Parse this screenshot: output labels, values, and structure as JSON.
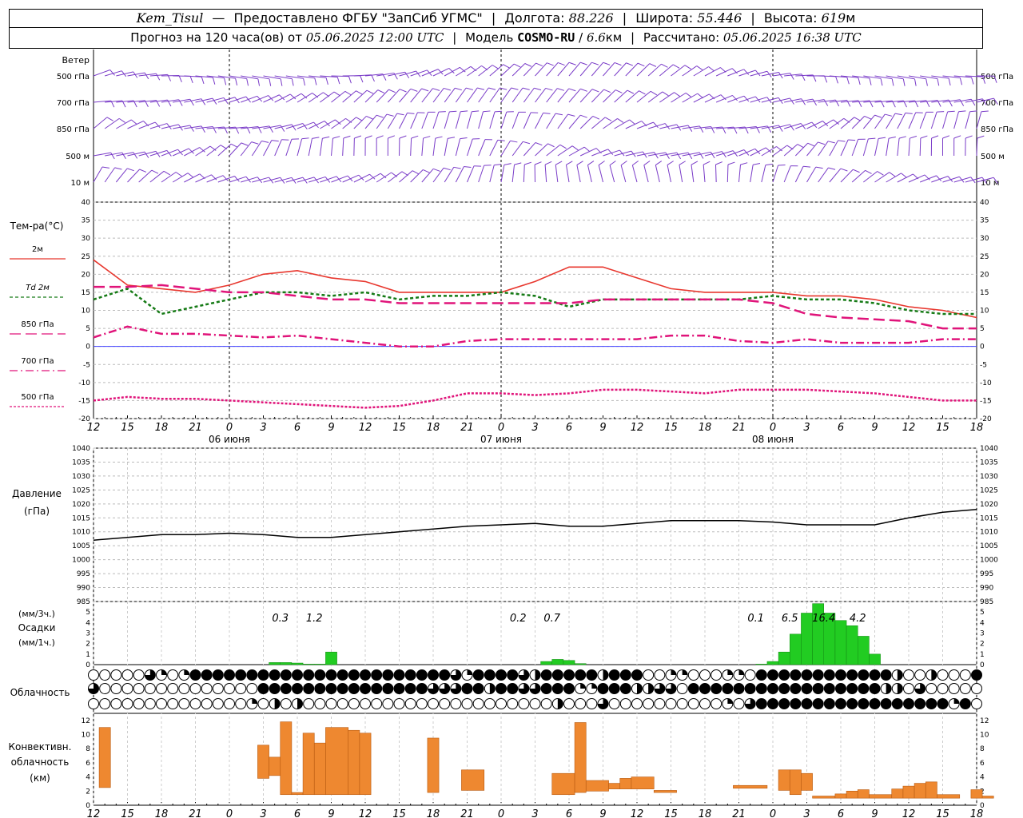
{
  "header": {
    "station": "Kem_Tisul",
    "provider": "Предоставлено ФГБУ \"ЗапСиб УГМС\"",
    "lon_label": "Долгота:",
    "lon": "88.226",
    "lat_label": "Широта:",
    "lat": "55.446",
    "alt_label": "Высота:",
    "alt": "619",
    "alt_unit": "м",
    "forecast_prefix": "Прогноз на 120 часа(ов) от",
    "forecast_start": "05.06.2025 12:00 UTC",
    "model_label": "Модель",
    "model": "COSMO-RU",
    "model_res": "6.6",
    "model_res_unit": "км",
    "computed_label": "Рассчитано:",
    "computed": "05.06.2025 16:38 UTC"
  },
  "wind": {
    "title": "Ветер",
    "levels": [
      "500 гПа",
      "700 гПа",
      "850 гПа",
      "500 м",
      "10  м"
    ],
    "color": "#7a3cc8"
  },
  "time_axis": {
    "hour_labels": [
      "12",
      "15",
      "18",
      "21",
      "0",
      "3",
      "6",
      "9",
      "12",
      "15",
      "18",
      "21",
      "0",
      "3",
      "6",
      "9",
      "12",
      "15",
      "18",
      "21",
      "0",
      "3",
      "6",
      "9",
      "12",
      "15",
      "18"
    ],
    "date_labels": [
      "06 июня",
      "07 июня",
      "08 июня"
    ]
  },
  "chart_data": [
    {
      "type": "line",
      "title": "Тем-ра(°C)",
      "ylim": [
        -20,
        40
      ],
      "yticks": [
        "40",
        "35",
        "30",
        "25",
        "20",
        "15",
        "10",
        "5",
        "0",
        "-5",
        "-10",
        "-15",
        "-20"
      ],
      "x_hours": [
        0,
        3,
        6,
        9,
        12,
        15,
        18,
        21,
        24,
        27,
        30,
        33,
        36,
        39,
        42,
        45,
        48,
        51,
        54,
        57,
        60,
        63,
        66,
        69,
        72,
        75,
        78
      ],
      "series": [
        {
          "name": "2м",
          "color": "#e8372e",
          "values": [
            24,
            17,
            16,
            15,
            17,
            20,
            21,
            19,
            18,
            15,
            15,
            15,
            15,
            18,
            22,
            22,
            19,
            16,
            15,
            15,
            15,
            14,
            14,
            13,
            11,
            10,
            8
          ]
        },
        {
          "name": "Td  2м",
          "color": "#157a15",
          "values": [
            13,
            16,
            9,
            11,
            13,
            15,
            15,
            14,
            15,
            13,
            14,
            14,
            15,
            14,
            11,
            13,
            13,
            13,
            13,
            13,
            14,
            13,
            13,
            12,
            10,
            9,
            9
          ]
        },
        {
          "name": "850 гПа",
          "color": "#e0147a",
          "values": [
            16.5,
            16.5,
            17,
            16,
            15,
            15,
            14,
            13,
            13,
            12,
            12,
            12,
            12,
            12,
            12,
            13,
            13,
            13,
            13,
            13,
            12,
            9,
            8,
            7.5,
            7,
            5,
            5
          ]
        },
        {
          "name": "700 гПа",
          "color": "#e0147a",
          "values": [
            2.5,
            5.5,
            3.5,
            3.5,
            3,
            2.5,
            3,
            2,
            1,
            0,
            0,
            1.5,
            2,
            2,
            2,
            2,
            2,
            3,
            3,
            1.5,
            1,
            2,
            1,
            1,
            1,
            2,
            2
          ]
        },
        {
          "name": "500 гПа",
          "color": "#e0147a",
          "values": [
            -15,
            -14,
            -14.5,
            -14.5,
            -15,
            -15.5,
            -16,
            -16.5,
            -17,
            -16.5,
            -15,
            -13,
            -13,
            -13.5,
            -13,
            -12,
            -12,
            -12.5,
            -13,
            -12,
            -12,
            -12,
            -12.5,
            -13,
            -14,
            -15,
            -15
          ]
        }
      ]
    },
    {
      "type": "line",
      "title": "Давление",
      "unit": "(гПа)",
      "ylim": [
        985,
        1040
      ],
      "yticks": [
        "1040",
        "1035",
        "1030",
        "1025",
        "1020",
        "1015",
        "1010",
        "1005",
        "1000",
        "995",
        "990",
        "985"
      ],
      "x_hours": [
        0,
        3,
        6,
        9,
        12,
        15,
        18,
        21,
        24,
        27,
        30,
        33,
        36,
        39,
        42,
        45,
        48,
        51,
        54,
        57,
        60,
        63,
        66,
        69,
        72,
        75,
        78
      ],
      "series": [
        {
          "name": "Давление",
          "color": "#000000",
          "values": [
            1007,
            1008,
            1009,
            1009,
            1009.5,
            1009,
            1008,
            1008,
            1009,
            1010,
            1011,
            1012,
            1012.5,
            1013,
            1012,
            1012,
            1013,
            1014,
            1014,
            1014,
            1013.5,
            1012.5,
            1012.5,
            1012.5,
            1015,
            1017,
            1018
          ]
        }
      ]
    },
    {
      "type": "bar",
      "title": "Осадки",
      "unit_top": "(мм/3ч.)",
      "unit_bottom": "(мм/1ч.)",
      "ylim": [
        0,
        6
      ],
      "yticks": [
        "5",
        "4",
        "3",
        "2",
        "1",
        "0"
      ],
      "hours": [
        16,
        17,
        18,
        19,
        20,
        21,
        40,
        41,
        42,
        43,
        59,
        60,
        61,
        62,
        63,
        64,
        65,
        66,
        67,
        68,
        69
      ],
      "values": [
        0.2,
        0.2,
        0.15,
        0.05,
        0.05,
        1.2,
        0.3,
        0.5,
        0.4,
        0.1,
        0.05,
        0.3,
        1.2,
        2.9,
        4.9,
        5.8,
        4.9,
        4.2,
        3.7,
        2.7,
        1.0
      ],
      "totals": [
        {
          "hour": 16.5,
          "label": "0.3"
        },
        {
          "hour": 19.5,
          "label": "1.2"
        },
        {
          "hour": 37.5,
          "label": "0.2"
        },
        {
          "hour": 40.5,
          "label": "0.7"
        },
        {
          "hour": 58.5,
          "label": "0.1"
        },
        {
          "hour": 61.5,
          "label": "6.5"
        },
        {
          "hour": 64.5,
          "label": "16.4"
        },
        {
          "hour": 67.5,
          "label": "4.2"
        }
      ]
    },
    {
      "type": "table",
      "title": "Облачность",
      "note": "three layers, hourly cover symbols; each row lists hour ranges with cover value (0 clear, 4 overcast)",
      "rows": [
        [
          [
            0,
            4,
            0
          ],
          [
            5,
            5,
            3
          ],
          [
            6,
            6,
            1
          ],
          [
            7,
            7,
            0
          ],
          [
            8,
            8,
            1
          ],
          [
            9,
            31,
            4
          ],
          [
            32,
            32,
            3
          ],
          [
            33,
            33,
            1
          ],
          [
            34,
            37,
            4
          ],
          [
            38,
            38,
            3
          ],
          [
            39,
            39,
            2
          ],
          [
            40,
            44,
            4
          ],
          [
            45,
            45,
            2
          ],
          [
            46,
            48,
            4
          ],
          [
            49,
            50,
            0
          ],
          [
            51,
            52,
            1
          ],
          [
            53,
            55,
            0
          ],
          [
            56,
            57,
            1
          ],
          [
            58,
            58,
            0
          ],
          [
            59,
            70,
            4
          ],
          [
            71,
            71,
            2
          ],
          [
            72,
            73,
            0
          ],
          [
            74,
            74,
            2
          ],
          [
            75,
            77,
            0
          ],
          [
            78,
            78,
            4
          ]
        ],
        [
          [
            0,
            0,
            3
          ],
          [
            1,
            14,
            0
          ],
          [
            15,
            29,
            4
          ],
          [
            30,
            32,
            3
          ],
          [
            33,
            34,
            4
          ],
          [
            35,
            35,
            2
          ],
          [
            36,
            37,
            4
          ],
          [
            38,
            39,
            3
          ],
          [
            40,
            42,
            4
          ],
          [
            43,
            44,
            1
          ],
          [
            45,
            47,
            4
          ],
          [
            48,
            49,
            2
          ],
          [
            50,
            51,
            3
          ],
          [
            52,
            52,
            0
          ],
          [
            53,
            69,
            4
          ],
          [
            70,
            71,
            2
          ],
          [
            72,
            72,
            0
          ],
          [
            73,
            73,
            3
          ],
          [
            74,
            78,
            0
          ]
        ],
        [
          [
            0,
            13,
            0
          ],
          [
            14,
            14,
            1
          ],
          [
            15,
            15,
            0
          ],
          [
            16,
            16,
            2
          ],
          [
            17,
            17,
            0
          ],
          [
            18,
            18,
            2
          ],
          [
            19,
            40,
            0
          ],
          [
            41,
            41,
            2
          ],
          [
            42,
            44,
            0
          ],
          [
            45,
            45,
            3
          ],
          [
            46,
            55,
            0
          ],
          [
            56,
            56,
            1
          ],
          [
            57,
            57,
            0
          ],
          [
            58,
            58,
            3
          ],
          [
            59,
            75,
            4
          ],
          [
            76,
            76,
            1
          ],
          [
            77,
            77,
            4
          ],
          [
            78,
            78,
            0
          ]
        ]
      ]
    },
    {
      "type": "bar",
      "title": "Конвективн.",
      "title2": "облачность",
      "unit": "(км)",
      "ylim": [
        0,
        13
      ],
      "yticks": [
        "12",
        "10",
        "8",
        "6",
        "4",
        "2",
        "0"
      ],
      "bars": [
        {
          "from": 0.5,
          "to": 1.5,
          "bottom": 2.5,
          "top": 11.0
        },
        {
          "from": 14.5,
          "to": 15.5,
          "bottom": 3.8,
          "top": 8.5
        },
        {
          "from": 15.5,
          "to": 16.5,
          "bottom": 4.2,
          "top": 6.8
        },
        {
          "from": 16.5,
          "to": 17.5,
          "bottom": 1.5,
          "top": 11.8
        },
        {
          "from": 17.5,
          "to": 18.5,
          "bottom": 1.5,
          "top": 1.8
        },
        {
          "from": 18.5,
          "to": 19.5,
          "bottom": 1.5,
          "top": 10.2
        },
        {
          "from": 19.5,
          "to": 20.5,
          "bottom": 1.5,
          "top": 8.8
        },
        {
          "from": 20.5,
          "to": 22.5,
          "bottom": 1.5,
          "top": 11.0
        },
        {
          "from": 22.5,
          "to": 23.5,
          "bottom": 1.5,
          "top": 10.6
        },
        {
          "from": 23.5,
          "to": 24.5,
          "bottom": 1.5,
          "top": 10.2
        },
        {
          "from": 29.5,
          "to": 30.5,
          "bottom": 1.8,
          "top": 9.5
        },
        {
          "from": 32.5,
          "to": 34.5,
          "bottom": 2.1,
          "top": 5.0
        },
        {
          "from": 40.5,
          "to": 42.5,
          "bottom": 1.5,
          "top": 4.5
        },
        {
          "from": 42.5,
          "to": 43.5,
          "bottom": 1.8,
          "top": 11.7
        },
        {
          "from": 43.5,
          "to": 45.5,
          "bottom": 2.0,
          "top": 3.5
        },
        {
          "from": 45.5,
          "to": 46.5,
          "bottom": 2.3,
          "top": 3.1
        },
        {
          "from": 46.5,
          "to": 47.5,
          "bottom": 2.3,
          "top": 3.8
        },
        {
          "from": 47.5,
          "to": 49.5,
          "bottom": 2.3,
          "top": 4.0
        },
        {
          "from": 49.5,
          "to": 51.5,
          "bottom": 1.8,
          "top": 2.1
        },
        {
          "from": 56.5,
          "to": 59.5,
          "bottom": 2.4,
          "top": 2.8
        },
        {
          "from": 60.5,
          "to": 61.5,
          "bottom": 2.1,
          "top": 5.0
        },
        {
          "from": 61.5,
          "to": 62.5,
          "bottom": 1.5,
          "top": 5.0
        },
        {
          "from": 62.5,
          "to": 63.5,
          "bottom": 2.1,
          "top": 4.5
        },
        {
          "from": 63.5,
          "to": 65.5,
          "bottom": 1.0,
          "top": 1.3
        },
        {
          "from": 65.5,
          "to": 66.5,
          "bottom": 1.0,
          "top": 1.6
        },
        {
          "from": 66.5,
          "to": 67.5,
          "bottom": 1.0,
          "top": 2.0
        },
        {
          "from": 67.5,
          "to": 68.5,
          "bottom": 1.0,
          "top": 2.2
        },
        {
          "from": 68.5,
          "to": 70.5,
          "bottom": 1.0,
          "top": 1.5
        },
        {
          "from": 70.5,
          "to": 71.5,
          "bottom": 1.0,
          "top": 2.3
        },
        {
          "from": 71.5,
          "to": 72.5,
          "bottom": 1.0,
          "top": 2.7
        },
        {
          "from": 72.5,
          "to": 73.5,
          "bottom": 1.0,
          "top": 3.1
        },
        {
          "from": 73.5,
          "to": 74.5,
          "bottom": 1.0,
          "top": 3.3
        },
        {
          "from": 74.5,
          "to": 76.5,
          "bottom": 1.0,
          "top": 1.5
        },
        {
          "from": 77.5,
          "to": 78.5,
          "bottom": 1.0,
          "top": 2.2
        },
        {
          "from": 78.5,
          "to": 79.5,
          "bottom": 1.0,
          "top": 1.3
        }
      ]
    }
  ]
}
